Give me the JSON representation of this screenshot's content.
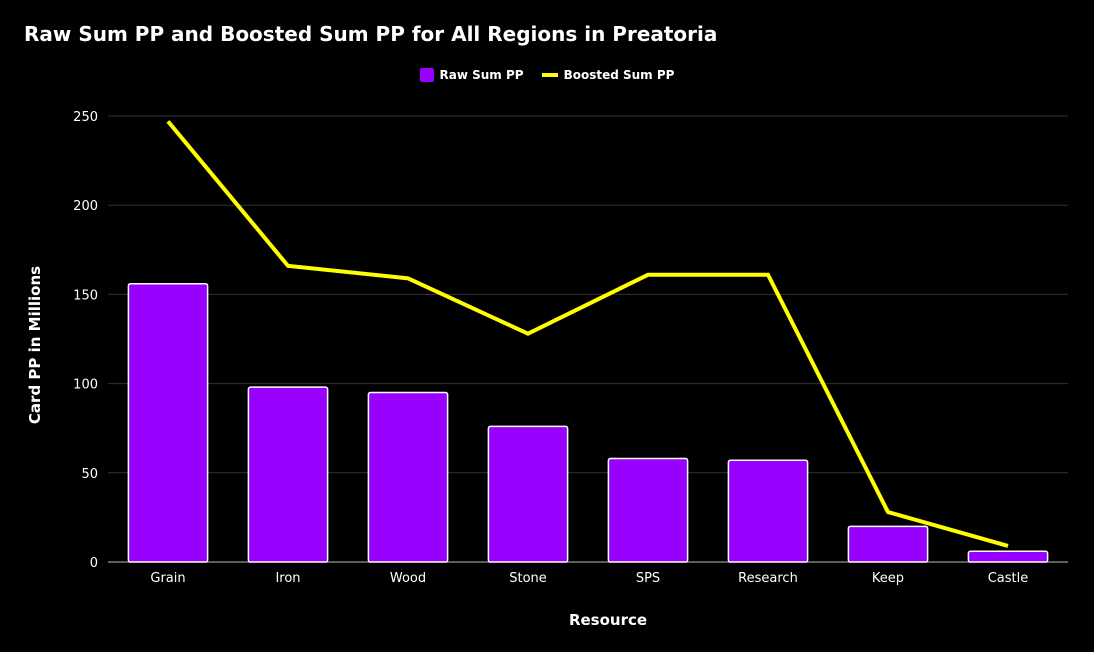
{
  "chart_data": {
    "type": "bar",
    "title": "Raw Sum PP and Boosted Sum PP for All Regions in Preatoria",
    "xlabel": "Resource",
    "ylabel": "Card PP in Millions",
    "categories": [
      "Grain",
      "Iron",
      "Wood",
      "Stone",
      "SPS",
      "Research",
      "Keep",
      "Castle"
    ],
    "series": [
      {
        "name": "Raw Sum PP",
        "type": "bar",
        "color": "#9900ff",
        "values": [
          156,
          98,
          95,
          76,
          58,
          57,
          20,
          6
        ]
      },
      {
        "name": "Boosted Sum PP",
        "type": "line",
        "color": "#ffff00",
        "values": [
          247,
          166,
          159,
          128,
          161,
          161,
          28,
          9
        ]
      }
    ],
    "ylim": [
      0,
      250
    ],
    "yticks": [
      0,
      50,
      100,
      150,
      200,
      250
    ],
    "grid": true,
    "legend_position": "top-center"
  }
}
